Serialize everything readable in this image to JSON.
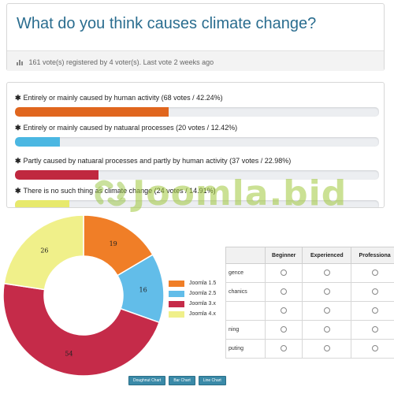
{
  "question": {
    "title": "What do you think causes climate change?",
    "meta": "161 vote(s) registered by 4 voter(s). Last vote 2 weeks ago"
  },
  "results": [
    {
      "label": "Entirely or mainly caused by human activity (68 votes / 42.24%)",
      "percent": 42.24,
      "color": "#e0661e"
    },
    {
      "label": "Entirely or mainly caused by natuaral processes (20 votes / 12.42%)",
      "percent": 12.42,
      "color": "#4bb7e2"
    },
    {
      "label": "Partly caused by natuaral processes and partly by human activity (37 votes / 22.98%)",
      "percent": 22.98,
      "color": "#c0283f"
    },
    {
      "label": "There is no such thing as climate change (24 votes / 14.91%)",
      "percent": 14.91,
      "color": "#e7e96c"
    }
  ],
  "watermark": "Joomla.bid",
  "chart_data": {
    "type": "pie",
    "categories": [
      "Joomla 1.5",
      "Joomla 2.5",
      "Joomla 3.x",
      "Joomla 4.x"
    ],
    "values": [
      19,
      16,
      54,
      26
    ],
    "colors": [
      "#f07e27",
      "#62bde9",
      "#c52b49",
      "#f0f08a"
    ],
    "legend_position": "right"
  },
  "chart_buttons": [
    "Doughnut Chart",
    "Bar Chart",
    "Line Chart"
  ],
  "grid": {
    "columns": [
      "Beginner",
      "Experienced",
      "Professiona"
    ],
    "rows": [
      "gence",
      "chanics",
      "",
      "ning",
      "puting"
    ]
  }
}
